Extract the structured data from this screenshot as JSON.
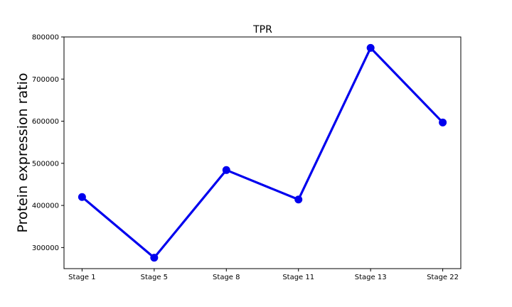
{
  "chart_data": {
    "type": "line",
    "title": "TPR",
    "xlabel": "",
    "ylabel": "Protein expression ratio",
    "categories": [
      "Stage 1",
      "Stage 5",
      "Stage 8",
      "Stage 11",
      "Stage 13",
      "Stage 22"
    ],
    "series": [
      {
        "values": [
          420000,
          276000,
          484000,
          414000,
          774000,
          597000
        ],
        "color": "#0000ee",
        "marker": "circle"
      }
    ],
    "ylim": [
      250000,
      800000
    ],
    "yticks": [
      300000,
      400000,
      500000,
      600000,
      700000,
      800000
    ],
    "ytick_labels": [
      "300000",
      "400000",
      "500000",
      "600000",
      "700000",
      "800000"
    ],
    "grid": false,
    "legend": "none"
  }
}
